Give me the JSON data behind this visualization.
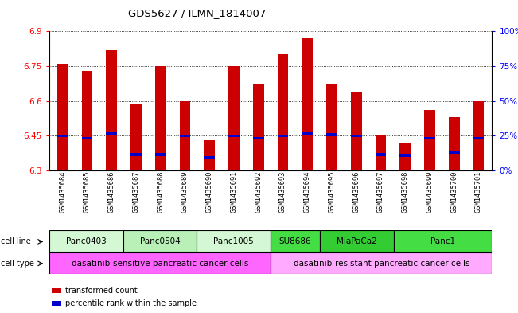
{
  "title": "GDS5627 / ILMN_1814007",
  "samples": [
    "GSM1435684",
    "GSM1435685",
    "GSM1435686",
    "GSM1435687",
    "GSM1435688",
    "GSM1435689",
    "GSM1435690",
    "GSM1435691",
    "GSM1435692",
    "GSM1435693",
    "GSM1435694",
    "GSM1435695",
    "GSM1435696",
    "GSM1435697",
    "GSM1435698",
    "GSM1435699",
    "GSM1435700",
    "GSM1435701"
  ],
  "transformed_count": [
    6.76,
    6.73,
    6.82,
    6.59,
    6.75,
    6.6,
    6.43,
    6.75,
    6.67,
    6.8,
    6.87,
    6.67,
    6.64,
    6.45,
    6.42,
    6.56,
    6.53,
    6.6
  ],
  "percentile_values": [
    6.45,
    6.44,
    6.46,
    6.37,
    6.37,
    6.45,
    6.355,
    6.45,
    6.44,
    6.45,
    6.46,
    6.455,
    6.45,
    6.37,
    6.365,
    6.44,
    6.38,
    6.44
  ],
  "y_min": 6.3,
  "y_max": 6.9,
  "y_ticks": [
    6.3,
    6.45,
    6.6,
    6.75,
    6.9
  ],
  "right_ticks": [
    0,
    25,
    50,
    75,
    100
  ],
  "cell_lines": [
    {
      "label": "Panc0403",
      "start": 0,
      "end": 3,
      "color": "#d4f7d4"
    },
    {
      "label": "Panc0504",
      "start": 3,
      "end": 6,
      "color": "#b8f0b8"
    },
    {
      "label": "Panc1005",
      "start": 6,
      "end": 9,
      "color": "#d4f7d4"
    },
    {
      "label": "SU8686",
      "start": 9,
      "end": 11,
      "color": "#44dd44"
    },
    {
      "label": "MiaPaCa2",
      "start": 11,
      "end": 14,
      "color": "#33cc33"
    },
    {
      "label": "Panc1",
      "start": 14,
      "end": 18,
      "color": "#44dd44"
    }
  ],
  "cell_types": [
    {
      "label": "dasatinib-sensitive pancreatic cancer cells",
      "start": 0,
      "end": 9,
      "color": "#ff66ff"
    },
    {
      "label": "dasatinib-resistant pancreatic cancer cells",
      "start": 9,
      "end": 18,
      "color": "#ffaaff"
    }
  ],
  "bar_color": "#cc0000",
  "percentile_color": "#0000cc"
}
